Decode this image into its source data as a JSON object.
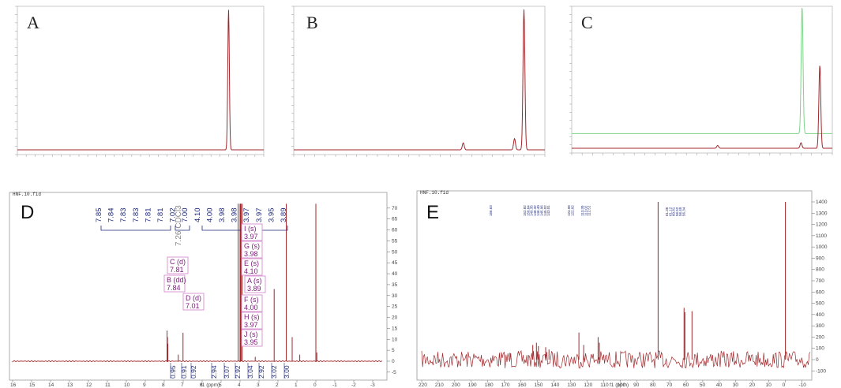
{
  "panels": {
    "A": {
      "letter": "A"
    },
    "B": {
      "letter": "B"
    },
    "C": {
      "letter": "C"
    },
    "D": {
      "letter": "D",
      "header": "HNF.10.fid",
      "xlabel": "f1 (ppm)",
      "solvent": "7.26 CDCl3"
    },
    "E": {
      "letter": "E",
      "header": "HNF.10.fid",
      "xlabel": "f1 (ppm)"
    }
  },
  "colors": {
    "trace_red": "#a0282c",
    "trace_green": "#7fd48a",
    "label_blue": "#1f2a7a",
    "label_purple": "#7a1a7a",
    "box_pink": "#d78fd0"
  },
  "chart_data": [
    {
      "type": "line",
      "panel": "A",
      "peaks": [
        {
          "x": 12.0,
          "height": 1.0
        }
      ],
      "xlim": [
        0,
        14
      ],
      "ylabel": "",
      "xlabel": ""
    },
    {
      "type": "line",
      "panel": "B",
      "peaks": [
        {
          "x": 8.1,
          "height": 0.05
        },
        {
          "x": 10.55,
          "height": 0.08
        },
        {
          "x": 11.0,
          "height": 1.0
        }
      ],
      "xlim": [
        0,
        12
      ]
    },
    {
      "type": "line",
      "panel": "C",
      "series": [
        {
          "color": "green",
          "offset": 0.1,
          "peaks": [
            {
              "x": 11.05,
              "height": 0.92
            }
          ]
        },
        {
          "color": "red",
          "offset": 0.0,
          "peaks": [
            {
              "x": 7.0,
              "height": 0.02
            },
            {
              "x": 11.0,
              "height": 0.04
            },
            {
              "x": 11.9,
              "height": 0.6
            }
          ]
        }
      ],
      "xlim": [
        0,
        12.5
      ]
    },
    {
      "type": "line",
      "panel": "D",
      "xlabel": "f1 (ppm)",
      "xlim": [
        16,
        -3.5
      ],
      "ylim": [
        -5,
        75
      ],
      "x_ticks": [
        "16",
        "15",
        "14",
        "13",
        "12",
        "11",
        "10",
        "9",
        "8",
        "7",
        "6",
        "5",
        "4",
        "3",
        "2",
        "1",
        "0",
        "-1",
        "-2",
        "-3"
      ],
      "y_ticks": [
        "70",
        "65",
        "60",
        "55",
        "50",
        "45",
        "40",
        "35",
        "30",
        "25",
        "20",
        "15",
        "10",
        "5",
        "0",
        "-5"
      ],
      "peak_labels": [
        "7.85",
        "7.84",
        "7.83",
        "7.83",
        "7.81",
        "7.81",
        "7.02",
        "7.00",
        "4.10",
        "4.00",
        "3.98",
        "3.98",
        "3.97",
        "3.97",
        "3.95",
        "3.89"
      ],
      "peaks": [
        {
          "x": 7.85,
          "y": 14
        },
        {
          "x": 7.83,
          "y": 11
        },
        {
          "x": 7.81,
          "y": 8
        },
        {
          "x": 7.26,
          "y": 3
        },
        {
          "x": 7.01,
          "y": 13
        },
        {
          "x": 4.1,
          "y": 72
        },
        {
          "x": 4.0,
          "y": 72
        },
        {
          "x": 3.98,
          "y": 72
        },
        {
          "x": 3.97,
          "y": 72
        },
        {
          "x": 3.95,
          "y": 72
        },
        {
          "x": 3.89,
          "y": 72
        },
        {
          "x": 3.2,
          "y": 2
        },
        {
          "x": 2.2,
          "y": 33
        },
        {
          "x": 1.56,
          "y": 72
        },
        {
          "x": 1.25,
          "y": 11
        },
        {
          "x": 0.85,
          "y": 3
        },
        {
          "x": 0.0,
          "y": 72
        },
        {
          "x": -0.05,
          "y": 4
        }
      ],
      "multiplets": [
        {
          "name": "C (d)",
          "shift": "7.81"
        },
        {
          "name": "B (dd)",
          "shift": "7.84"
        },
        {
          "name": "D (d)",
          "shift": "7.01"
        },
        {
          "name": "I (s)",
          "shift": "3.97"
        },
        {
          "name": "G (s)",
          "shift": "3.98"
        },
        {
          "name": "E (s)",
          "shift": "4.10"
        },
        {
          "name": "A (s)",
          "shift": "3.89"
        },
        {
          "name": "F (s)",
          "shift": "4.00"
        },
        {
          "name": "H (s)",
          "shift": "3.97"
        },
        {
          "name": "J (s)",
          "shift": "3.95"
        }
      ],
      "integrals": [
        "0.95",
        "0.91",
        "0.92",
        "2.94",
        "3.07",
        "2.92",
        "3.04",
        "2.92",
        "3.02",
        "3.00"
      ]
    },
    {
      "type": "line",
      "panel": "E",
      "xlabel": "f1 (ppm)",
      "xlim": [
        220,
        -15
      ],
      "ylim": [
        -150,
        1450
      ],
      "x_ticks": [
        "220",
        "210",
        "200",
        "190",
        "180",
        "170",
        "160",
        "150",
        "140",
        "130",
        "120",
        "110",
        "100",
        "90",
        "80",
        "70",
        "60",
        "50",
        "40",
        "30",
        "20",
        "10",
        "0",
        "-10"
      ],
      "y_ticks": [
        "1400",
        "1300",
        "1200",
        "1100",
        "1000",
        "900",
        "800",
        "700",
        "600",
        "500",
        "400",
        "300",
        "200",
        "100",
        "0",
        "-100"
      ],
      "peak_labels": [
        "166.63",
        "152.82",
        "150.64",
        "149.35",
        "148.32",
        "146.40",
        "145.96",
        "145.02",
        "143.01",
        "124.98",
        "122.02",
        "113.30",
        "113.02",
        "112.51",
        "61.36",
        "61.12",
        "60.81",
        "56.52",
        "56.40",
        "56.34"
      ],
      "peaks": [
        {
          "x": 166.6,
          "y": 60
        },
        {
          "x": 152.8,
          "y": 130
        },
        {
          "x": 150.6,
          "y": 150
        },
        {
          "x": 149.4,
          "y": 120
        },
        {
          "x": 145.0,
          "y": 110
        },
        {
          "x": 143.0,
          "y": 90
        },
        {
          "x": 124.9,
          "y": 240
        },
        {
          "x": 122.0,
          "y": 130
        },
        {
          "x": 113.3,
          "y": 200
        },
        {
          "x": 112.5,
          "y": 150
        },
        {
          "x": 77.0,
          "y": 1400
        },
        {
          "x": 61.3,
          "y": 460
        },
        {
          "x": 60.8,
          "y": 420
        },
        {
          "x": 56.5,
          "y": 430
        },
        {
          "x": 0.0,
          "y": 1400
        }
      ]
    }
  ]
}
